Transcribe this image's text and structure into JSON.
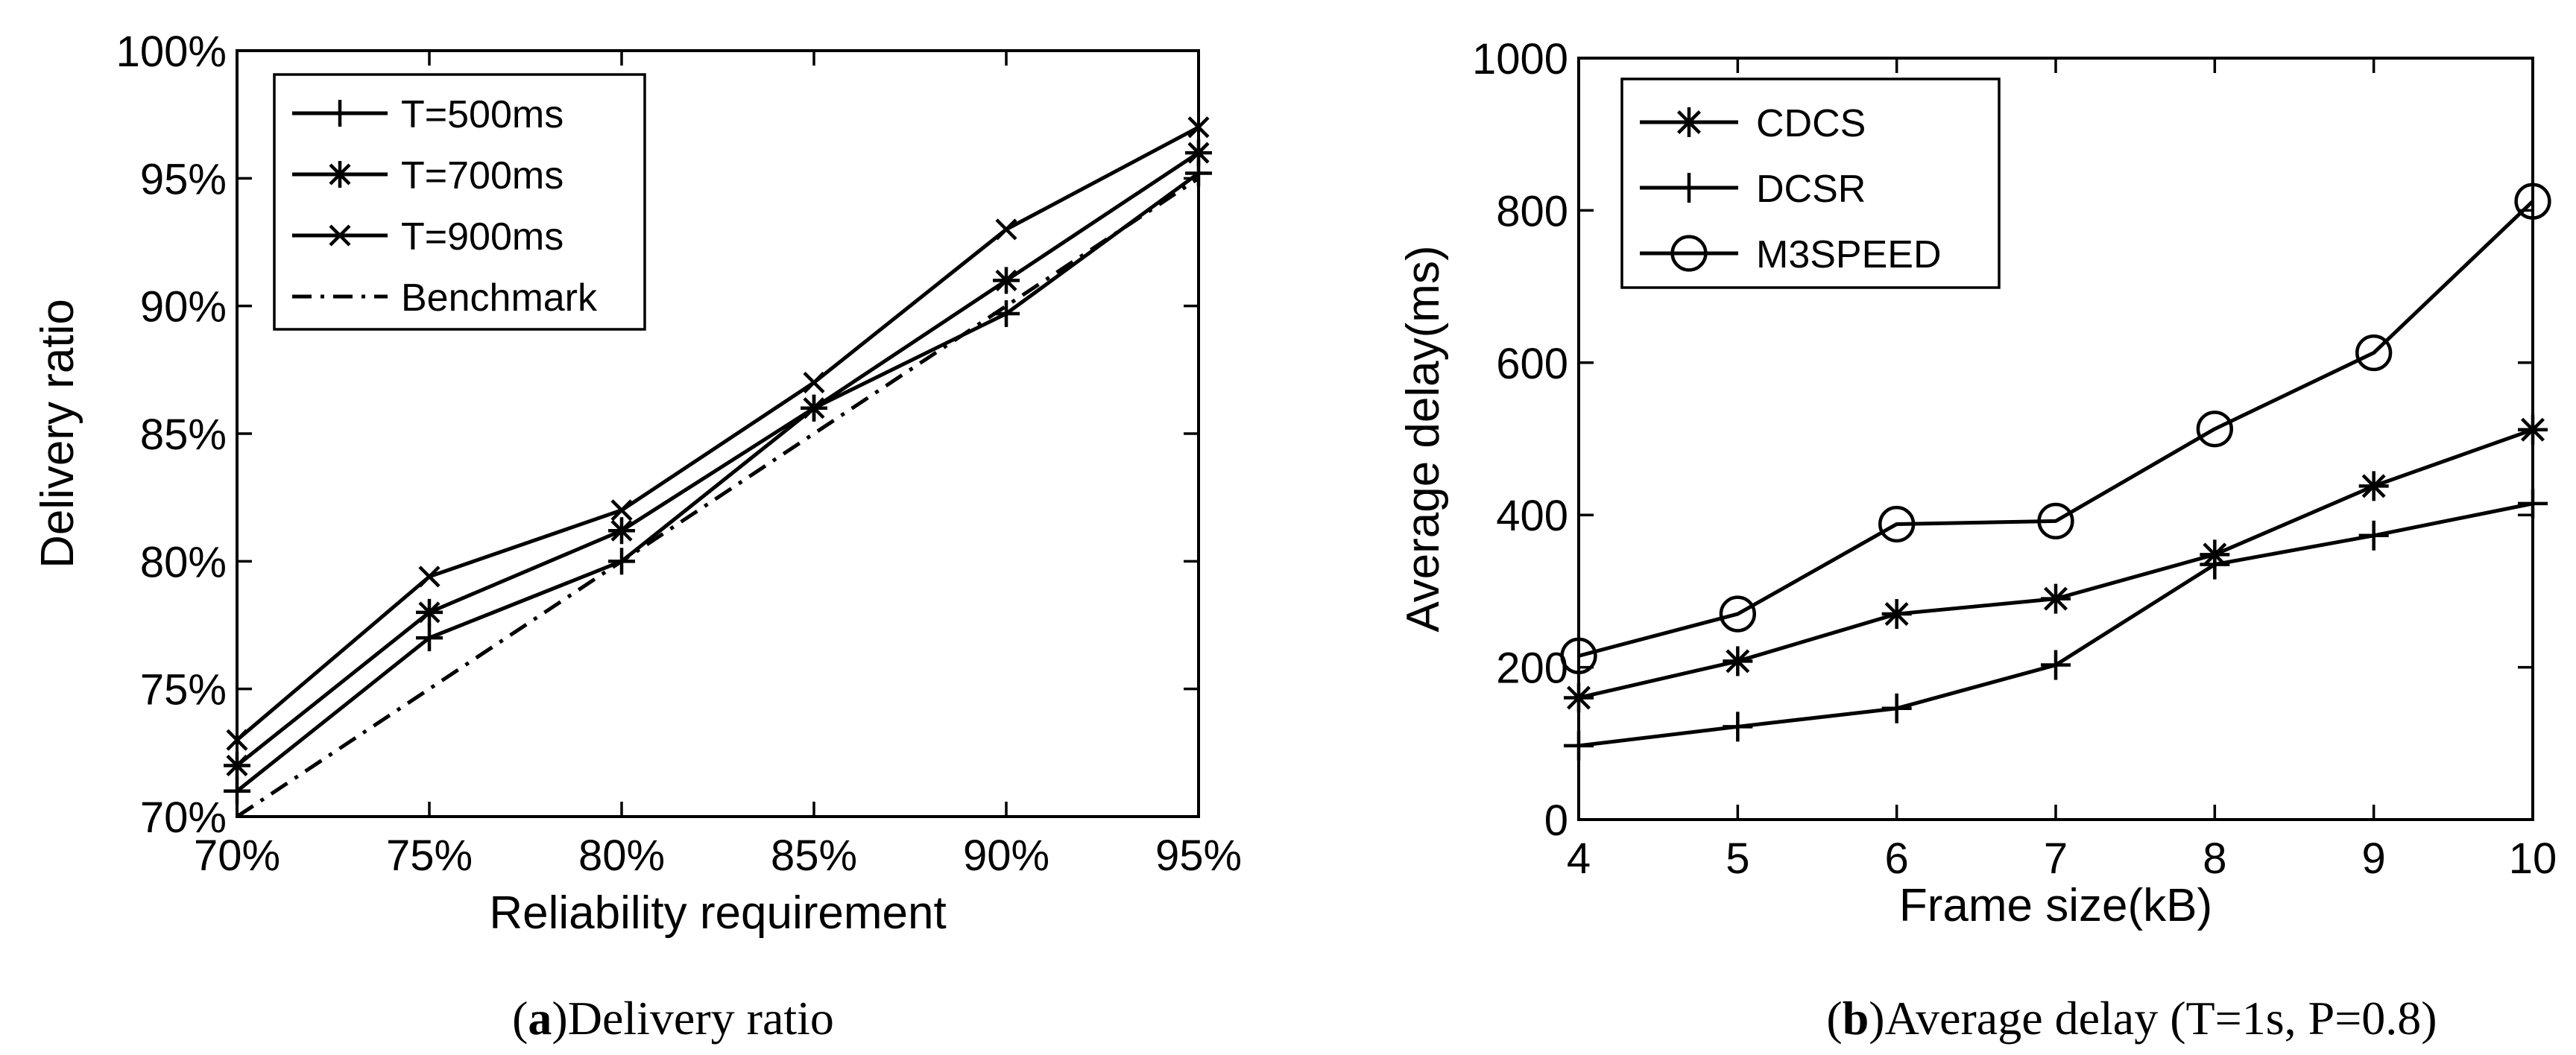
{
  "chart_data": [
    {
      "type": "line",
      "title": "",
      "xlabel": "Reliability requirement",
      "ylabel": "Delivery ratio",
      "categories": [
        "70%",
        "75%",
        "80%",
        "85%",
        "90%",
        "95%"
      ],
      "x": [
        70,
        75,
        80,
        85,
        90,
        95
      ],
      "xlim": [
        70,
        95
      ],
      "ylim": [
        70,
        100
      ],
      "yticks": [
        70,
        75,
        80,
        85,
        90,
        95,
        100
      ],
      "ytick_labels": [
        "70%",
        "75%",
        "80%",
        "85%",
        "90%",
        "95%",
        "100%"
      ],
      "series": [
        {
          "name": "T=500ms",
          "marker": "plus",
          "style": "solid",
          "values": [
            71,
            77,
            80,
            86,
            89.7,
            95.2
          ]
        },
        {
          "name": "T=700ms",
          "marker": "star",
          "style": "solid",
          "values": [
            72,
            78,
            81.2,
            86,
            91,
            96
          ]
        },
        {
          "name": "T=900ms",
          "marker": "x",
          "style": "solid",
          "values": [
            73,
            79.4,
            82,
            87,
            93,
            97
          ]
        },
        {
          "name": "Benchmark",
          "marker": "none",
          "style": "dashdot",
          "values": [
            70,
            75,
            80,
            85,
            90,
            95
          ]
        }
      ],
      "legend": "top-left",
      "caption": {
        "letter": "a",
        "text": "Delivery ratio"
      }
    },
    {
      "type": "line",
      "title": "",
      "xlabel": "Frame size(kB)",
      "ylabel": "Average delay(ms)",
      "x": [
        4,
        5,
        6,
        7,
        8,
        9,
        10
      ],
      "xtick_labels": [
        "4",
        "5",
        "6",
        "7",
        "8",
        "9",
        "10"
      ],
      "xlim": [
        4,
        10
      ],
      "ylim": [
        0,
        1000
      ],
      "yticks": [
        0,
        200,
        400,
        600,
        800,
        1000
      ],
      "ytick_labels": [
        "0",
        "200",
        "400",
        "600",
        "800",
        "1000"
      ],
      "series": [
        {
          "name": "CDCS",
          "marker": "star",
          "style": "solid",
          "values": [
            160,
            208,
            270,
            290,
            348,
            438,
            512
          ]
        },
        {
          "name": "DCSR",
          "marker": "plus",
          "style": "solid",
          "values": [
            97,
            122,
            146,
            203,
            335,
            373,
            415
          ]
        },
        {
          "name": "M3SPEED",
          "marker": "circle",
          "style": "solid",
          "values": [
            215,
            270,
            388,
            392,
            513,
            613,
            812
          ]
        }
      ],
      "legend": "top-left",
      "caption": {
        "letter": "b",
        "text": "Average delay (T=1s, P=0.8)"
      }
    }
  ]
}
